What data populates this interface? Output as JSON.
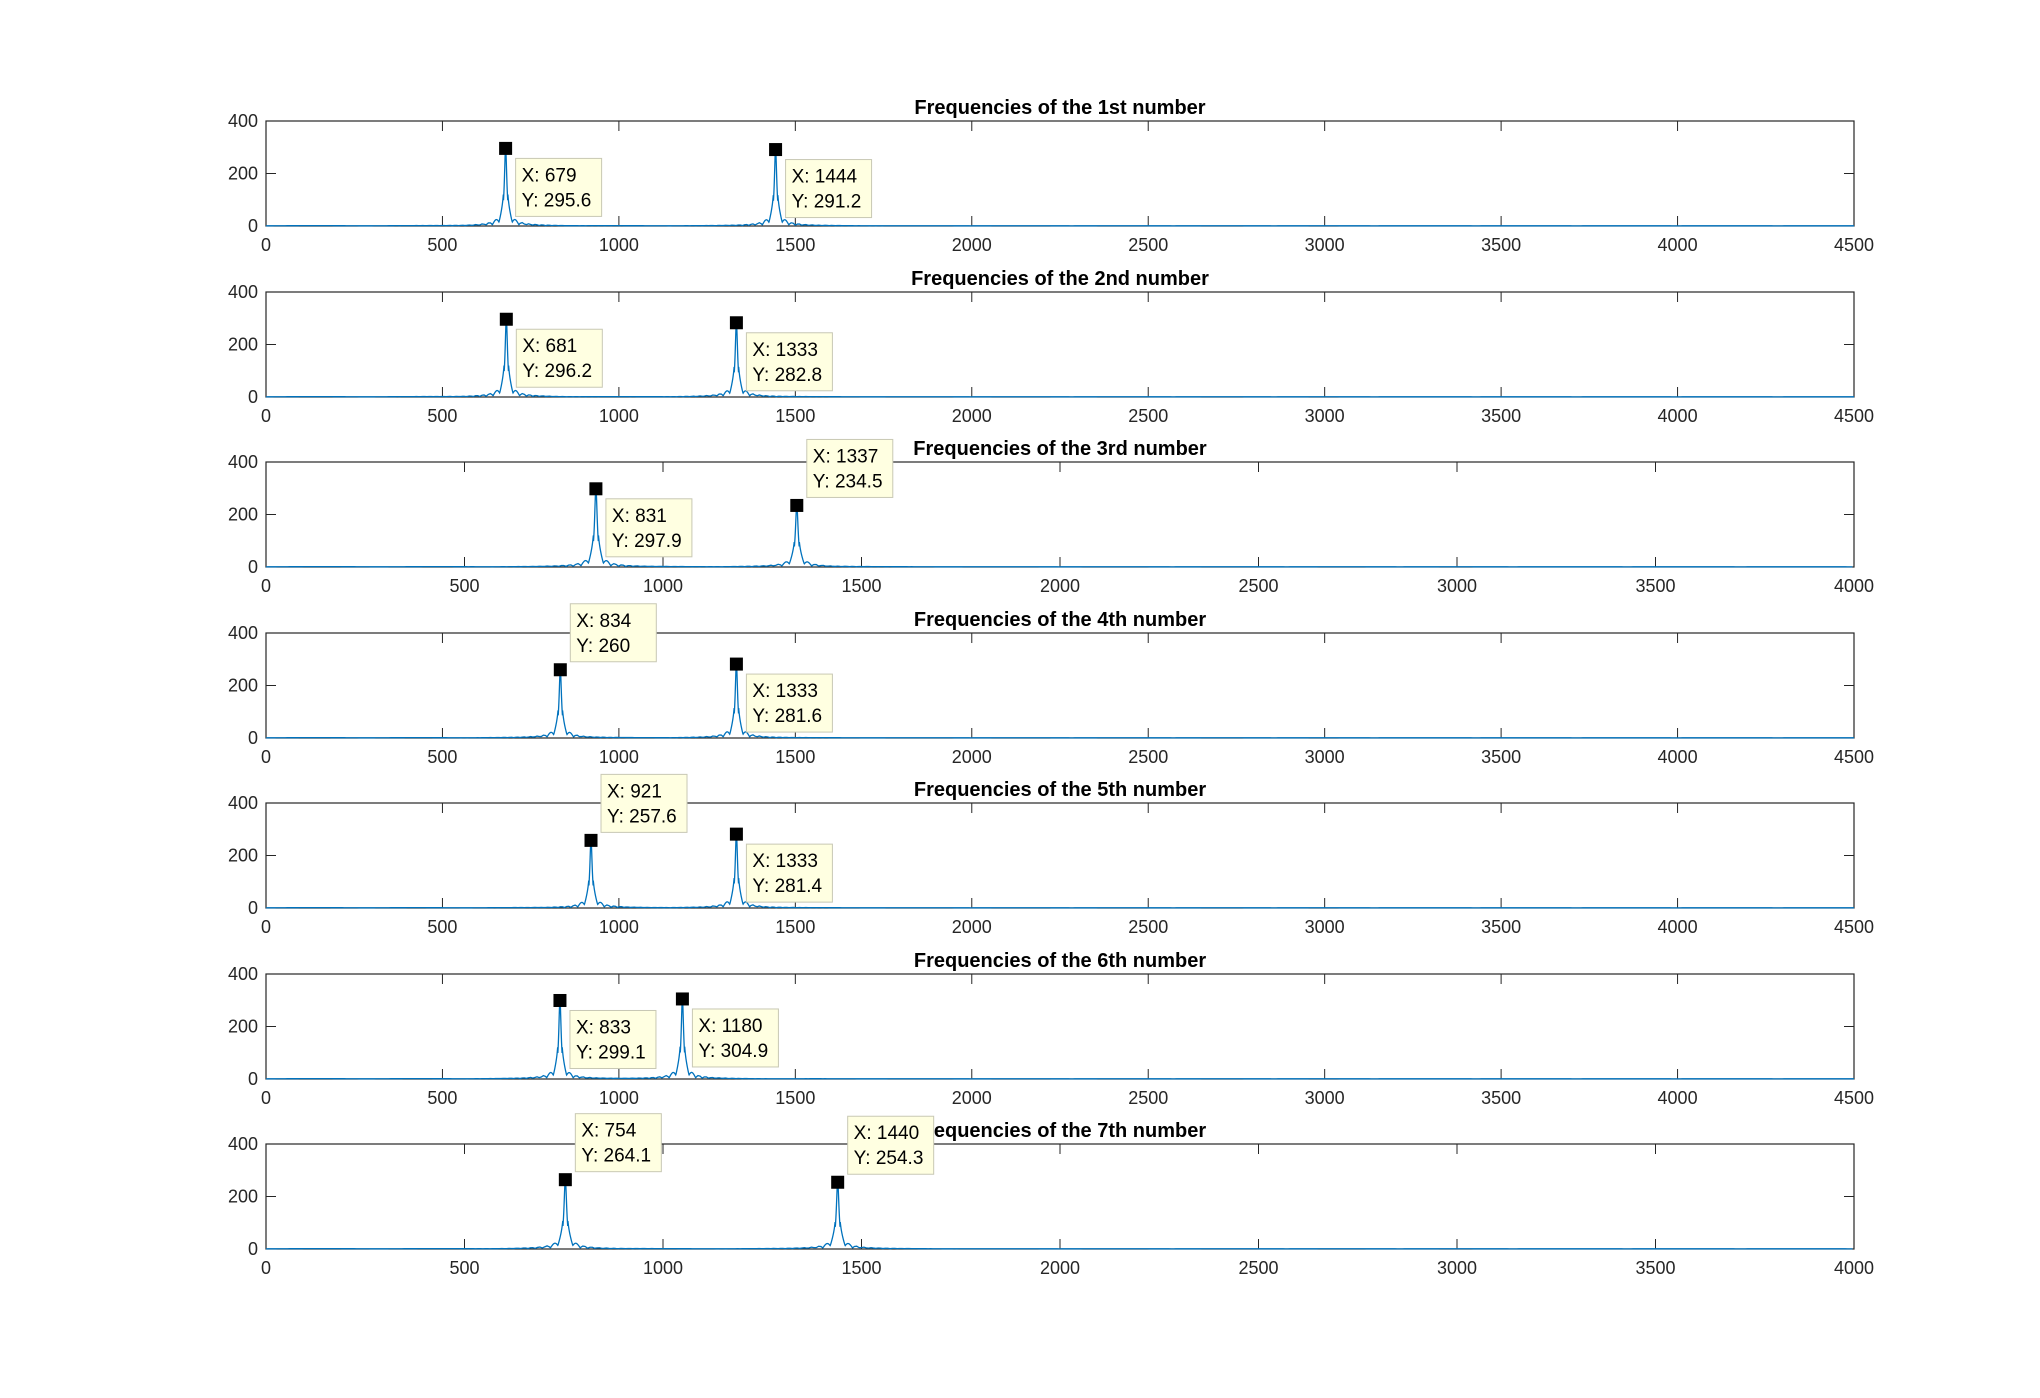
{
  "figure": {
    "background": "#ffffff",
    "line_color": "#0072bd",
    "datatip_bg": "#ffffe1",
    "datatip_border": "#c8c8b4",
    "marker_color": "#000000"
  },
  "chart_data": [
    {
      "type": "line",
      "title": "Frequencies of the 1st number",
      "xlabel": "",
      "ylabel": "",
      "xlim": [
        0,
        4500
      ],
      "ylim": [
        0,
        400
      ],
      "xticks": [
        "0",
        "500",
        "1000",
        "1500",
        "2000",
        "2500",
        "3000",
        "3500",
        "4000",
        "4500"
      ],
      "yticks": [
        "0",
        "200",
        "400"
      ],
      "grid": false,
      "peaks": [
        {
          "x": 679,
          "y": 295.6
        },
        {
          "x": 1444,
          "y": 291.2
        }
      ],
      "datatips": [
        {
          "x_label": "X: 679",
          "y_label": "Y: 295.6",
          "placement": "below-right"
        },
        {
          "x_label": "X: 1444",
          "y_label": "Y: 291.2",
          "placement": "below-right"
        }
      ]
    },
    {
      "type": "line",
      "title": "Frequencies of the 2nd number",
      "xlabel": "",
      "ylabel": "",
      "xlim": [
        0,
        4500
      ],
      "ylim": [
        0,
        400
      ],
      "xticks": [
        "0",
        "500",
        "1000",
        "1500",
        "2000",
        "2500",
        "3000",
        "3500",
        "4000",
        "4500"
      ],
      "yticks": [
        "0",
        "200",
        "400"
      ],
      "grid": false,
      "peaks": [
        {
          "x": 681,
          "y": 296.2
        },
        {
          "x": 1333,
          "y": 282.8
        }
      ],
      "datatips": [
        {
          "x_label": "X: 681",
          "y_label": "Y: 296.2",
          "placement": "below-right"
        },
        {
          "x_label": "X: 1333",
          "y_label": "Y: 282.8",
          "placement": "below-right"
        }
      ]
    },
    {
      "type": "line",
      "title": "Frequencies of the 3rd number",
      "xlabel": "",
      "ylabel": "",
      "xlim": [
        0,
        4000
      ],
      "ylim": [
        0,
        400
      ],
      "xticks": [
        "0",
        "500",
        "1000",
        "1500",
        "2000",
        "2500",
        "3000",
        "3500",
        "4000"
      ],
      "yticks": [
        "0",
        "200",
        "400"
      ],
      "grid": false,
      "peaks": [
        {
          "x": 831,
          "y": 297.9
        },
        {
          "x": 1337,
          "y": 234.5
        }
      ],
      "datatips": [
        {
          "x_label": "X: 831",
          "y_label": "Y: 297.9",
          "placement": "below-right"
        },
        {
          "x_label": "X: 1337",
          "y_label": "Y: 234.5",
          "placement": "above-right"
        }
      ]
    },
    {
      "type": "line",
      "title": "Frequencies of the 4th number",
      "xlabel": "",
      "ylabel": "",
      "xlim": [
        0,
        4500
      ],
      "ylim": [
        0,
        400
      ],
      "xticks": [
        "0",
        "500",
        "1000",
        "1500",
        "2000",
        "2500",
        "3000",
        "3500",
        "4000",
        "4500"
      ],
      "yticks": [
        "0",
        "200",
        "400"
      ],
      "grid": false,
      "peaks": [
        {
          "x": 834,
          "y": 260
        },
        {
          "x": 1333,
          "y": 281.6
        }
      ],
      "datatips": [
        {
          "x_label": "X: 834",
          "y_label": "Y: 260",
          "placement": "above-right"
        },
        {
          "x_label": "X: 1333",
          "y_label": "Y: 281.6",
          "placement": "below-right"
        }
      ]
    },
    {
      "type": "line",
      "title": "Frequencies of the 5th number",
      "xlabel": "",
      "ylabel": "",
      "xlim": [
        0,
        4500
      ],
      "ylim": [
        0,
        400
      ],
      "xticks": [
        "0",
        "500",
        "1000",
        "1500",
        "2000",
        "2500",
        "3000",
        "3500",
        "4000",
        "4500"
      ],
      "yticks": [
        "0",
        "200",
        "400"
      ],
      "grid": false,
      "peaks": [
        {
          "x": 921,
          "y": 257.6
        },
        {
          "x": 1333,
          "y": 281.4
        }
      ],
      "datatips": [
        {
          "x_label": "X: 921",
          "y_label": "Y: 257.6",
          "placement": "above-right"
        },
        {
          "x_label": "X: 1333",
          "y_label": "Y: 281.4",
          "placement": "below-right"
        }
      ]
    },
    {
      "type": "line",
      "title": "Frequencies of the 6th number",
      "xlabel": "",
      "ylabel": "",
      "xlim": [
        0,
        4500
      ],
      "ylim": [
        0,
        400
      ],
      "xticks": [
        "0",
        "500",
        "1000",
        "1500",
        "2000",
        "2500",
        "3000",
        "3500",
        "4000",
        "4500"
      ],
      "yticks": [
        "0",
        "200",
        "400"
      ],
      "grid": false,
      "peaks": [
        {
          "x": 833,
          "y": 299.1
        },
        {
          "x": 1180,
          "y": 304.9
        }
      ],
      "datatips": [
        {
          "x_label": "X: 833",
          "y_label": "Y: 299.1",
          "placement": "below-right"
        },
        {
          "x_label": "X: 1180",
          "y_label": "Y: 304.9",
          "placement": "below-right"
        }
      ]
    },
    {
      "type": "line",
      "title": "Frequencies of the 7th number",
      "xlabel": "",
      "ylabel": "",
      "xlim": [
        0,
        4000
      ],
      "ylim": [
        0,
        400
      ],
      "xticks": [
        "0",
        "500",
        "1000",
        "1500",
        "2000",
        "2500",
        "3000",
        "3500",
        "4000"
      ],
      "yticks": [
        "0",
        "200",
        "400"
      ],
      "grid": false,
      "peaks": [
        {
          "x": 754,
          "y": 264.1
        },
        {
          "x": 1440,
          "y": 254.3
        }
      ],
      "datatips": [
        {
          "x_label": "X: 754",
          "y_label": "Y: 264.1",
          "placement": "above-right"
        },
        {
          "x_label": "X: 1440",
          "y_label": "Y: 254.3",
          "placement": "above-right"
        }
      ]
    }
  ]
}
